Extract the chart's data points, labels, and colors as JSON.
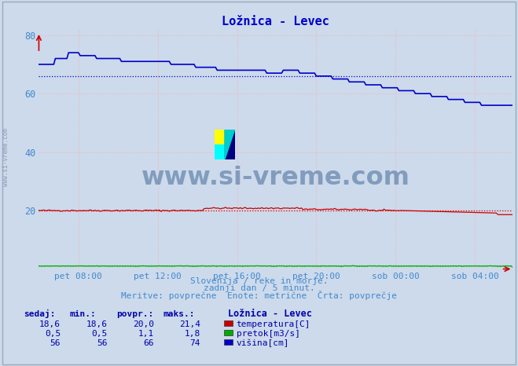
{
  "title": "Ložnica - Levec",
  "background_color": "#ccdaeb",
  "xlabel_ticks": [
    "pet 08:00",
    "pet 12:00",
    "pet 16:00",
    "pet 20:00",
    "sob 00:00",
    "sob 04:00"
  ],
  "ymin": 0,
  "ymax": 82,
  "n_points": 288,
  "temp_povpr": 20.0,
  "pretok_povpr": 1.1,
  "visina_povpr": 66,
  "temp_color": "#cc0000",
  "pretok_color": "#00aa00",
  "visina_color": "#0000cc",
  "grid_color_h": "#ffaaaa",
  "grid_color_v": "#ffaaaa",
  "watermark_text": "www.si-vreme.com",
  "watermark_color": "#3a6090",
  "footer_line1": "Slovenija / reke in morje.",
  "footer_line2": "zadnji dan / 5 minut.",
  "footer_line3": "Meritve: povprečne  Enote: metrične  Črta: povprečje",
  "text_color": "#4488cc",
  "legend_title": "Ložnica - Levec",
  "legend_labels": [
    "temperatura[C]",
    "pretok[m3/s]",
    "višina[cm]"
  ],
  "legend_colors": [
    "#cc0000",
    "#00aa00",
    "#0000cc"
  ],
  "table_headers": [
    "sedaj:",
    "min.:",
    "povpr.:",
    "maks.:"
  ],
  "table_rows": [
    [
      "18,6",
      "18,6",
      "20,0",
      "21,4"
    ],
    [
      "0,5",
      "0,5",
      "1,1",
      "1,8"
    ],
    [
      "56",
      "56",
      "66",
      "74"
    ]
  ],
  "sidebar_text": "www.si-vreme.com"
}
